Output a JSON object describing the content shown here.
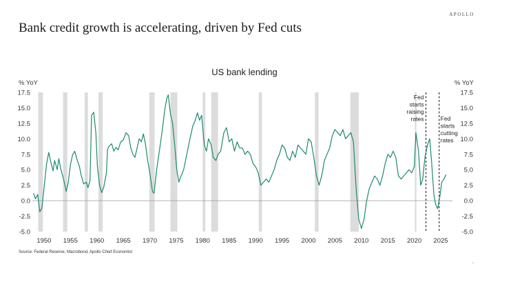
{
  "header": {
    "brand": "APOLLO",
    "headline": "Bank credit growth is accelerating, driven by Fed cuts"
  },
  "footer": {
    "source": "Source: Federal Reserve, Macrobond, Apollo Chief Economist",
    "corner_mark": "•"
  },
  "colors": {
    "line": "#1a8a6c",
    "recession": "#dcdcdc",
    "zero_line": "#999999",
    "event_line": "#333333"
  },
  "chart_data": {
    "type": "line",
    "title": "US bank lending",
    "ylabel_left": "% YoY",
    "ylabel_right": "% YoY",
    "xlim": [
      1947.8,
      2027.2
    ],
    "ylim": [
      -5.0,
      17.5
    ],
    "xticks": [
      1950,
      1955,
      1960,
      1965,
      1970,
      1975,
      1980,
      1985,
      1990,
      1995,
      2000,
      2005,
      2010,
      2015,
      2020,
      2025
    ],
    "yticks": [
      "17.5",
      "15.0",
      "12.5",
      "10.0",
      "7.5",
      "5.0",
      "2.5",
      "0.0",
      "-2.5",
      "-5.0"
    ],
    "recessions": [
      [
        1948.9,
        1949.8
      ],
      [
        1953.6,
        1954.4
      ],
      [
        1957.7,
        1958.3
      ],
      [
        1960.3,
        1961.1
      ],
      [
        1969.9,
        1970.9
      ],
      [
        1973.9,
        1975.2
      ],
      [
        1980.0,
        1980.5
      ],
      [
        1981.6,
        1982.9
      ],
      [
        1990.6,
        1991.2
      ],
      [
        2001.2,
        2001.9
      ],
      [
        2007.9,
        2009.5
      ],
      [
        2020.1,
        2020.4
      ]
    ],
    "events": [
      {
        "x": 2022.2,
        "label": [
          "Fed",
          "starts",
          "raising",
          "rates"
        ]
      },
      {
        "x": 2024.7,
        "label": [
          "Fed",
          "starts",
          "cutting",
          "rates"
        ]
      }
    ],
    "series": [
      {
        "values": [
          [
            1948.0,
            1.2
          ],
          [
            1948.4,
            0.3
          ],
          [
            1948.8,
            1.0
          ],
          [
            1949.2,
            -1.8
          ],
          [
            1949.6,
            -1.2
          ],
          [
            1950.0,
            2.0
          ],
          [
            1950.5,
            6.0
          ],
          [
            1950.9,
            7.8
          ],
          [
            1951.3,
            6.2
          ],
          [
            1951.7,
            4.8
          ],
          [
            1952.0,
            6.5
          ],
          [
            1952.5,
            5.0
          ],
          [
            1952.8,
            6.8
          ],
          [
            1953.2,
            5.0
          ],
          [
            1953.7,
            3.5
          ],
          [
            1954.2,
            1.5
          ],
          [
            1954.6,
            3.0
          ],
          [
            1955.0,
            5.8
          ],
          [
            1955.4,
            7.4
          ],
          [
            1955.8,
            8.0
          ],
          [
            1956.3,
            6.5
          ],
          [
            1956.7,
            5.5
          ],
          [
            1957.0,
            4.2
          ],
          [
            1957.5,
            2.7
          ],
          [
            1958.0,
            3.0
          ],
          [
            1958.3,
            2.1
          ],
          [
            1958.7,
            3.2
          ],
          [
            1959.0,
            13.8
          ],
          [
            1959.4,
            14.3
          ],
          [
            1959.8,
            11.0
          ],
          [
            1960.1,
            5.5
          ],
          [
            1960.5,
            2.5
          ],
          [
            1960.9,
            1.3
          ],
          [
            1961.3,
            2.2
          ],
          [
            1961.8,
            4.5
          ],
          [
            1962.0,
            8.3
          ],
          [
            1962.3,
            8.8
          ],
          [
            1962.8,
            9.2
          ],
          [
            1963.2,
            8.0
          ],
          [
            1963.6,
            8.6
          ],
          [
            1964.0,
            8.2
          ],
          [
            1964.5,
            9.5
          ],
          [
            1965.0,
            9.8
          ],
          [
            1965.5,
            11.0
          ],
          [
            1966.0,
            10.5
          ],
          [
            1966.4,
            8.5
          ],
          [
            1966.8,
            7.5
          ],
          [
            1967.2,
            7.0
          ],
          [
            1967.6,
            8.5
          ],
          [
            1968.0,
            10.0
          ],
          [
            1968.4,
            9.5
          ],
          [
            1968.8,
            10.8
          ],
          [
            1969.2,
            9.0
          ],
          [
            1969.6,
            6.5
          ],
          [
            1970.0,
            4.5
          ],
          [
            1970.5,
            1.5
          ],
          [
            1970.8,
            1.2
          ],
          [
            1971.3,
            5.0
          ],
          [
            1971.8,
            8.0
          ],
          [
            1972.3,
            11.0
          ],
          [
            1972.8,
            14.5
          ],
          [
            1973.2,
            16.5
          ],
          [
            1973.5,
            17.1
          ],
          [
            1973.9,
            14.0
          ],
          [
            1974.3,
            12.5
          ],
          [
            1974.7,
            9.0
          ],
          [
            1975.1,
            5.0
          ],
          [
            1975.5,
            3.0
          ],
          [
            1975.9,
            4.0
          ],
          [
            1976.4,
            5.0
          ],
          [
            1977.0,
            7.5
          ],
          [
            1977.6,
            10.0
          ],
          [
            1978.1,
            12.0
          ],
          [
            1978.6,
            13.0
          ],
          [
            1979.0,
            14.2
          ],
          [
            1979.4,
            13.0
          ],
          [
            1979.8,
            13.8
          ],
          [
            1980.3,
            9.0
          ],
          [
            1980.7,
            8.0
          ],
          [
            1981.1,
            10.0
          ],
          [
            1981.6,
            9.0
          ],
          [
            1982.0,
            7.0
          ],
          [
            1982.5,
            6.5
          ],
          [
            1982.9,
            7.5
          ],
          [
            1983.4,
            8.0
          ],
          [
            1984.0,
            11.0
          ],
          [
            1984.5,
            11.8
          ],
          [
            1985.0,
            9.5
          ],
          [
            1985.5,
            10.0
          ],
          [
            1986.0,
            8.0
          ],
          [
            1986.5,
            9.5
          ],
          [
            1987.0,
            8.5
          ],
          [
            1987.5,
            8.5
          ],
          [
            1988.0,
            7.5
          ],
          [
            1988.5,
            8.0
          ],
          [
            1989.0,
            7.5
          ],
          [
            1989.5,
            6.0
          ],
          [
            1990.0,
            5.5
          ],
          [
            1990.5,
            4.5
          ],
          [
            1991.0,
            2.5
          ],
          [
            1991.5,
            3.0
          ],
          [
            1992.0,
            3.5
          ],
          [
            1992.5,
            3.0
          ],
          [
            1993.0,
            4.0
          ],
          [
            1993.5,
            5.0
          ],
          [
            1994.0,
            6.5
          ],
          [
            1994.5,
            7.5
          ],
          [
            1995.0,
            9.0
          ],
          [
            1995.5,
            8.5
          ],
          [
            1996.0,
            7.0
          ],
          [
            1996.5,
            6.5
          ],
          [
            1997.0,
            8.0
          ],
          [
            1997.5,
            7.0
          ],
          [
            1998.0,
            9.0
          ],
          [
            1998.5,
            8.5
          ],
          [
            1999.0,
            8.0
          ],
          [
            1999.5,
            7.5
          ],
          [
            2000.0,
            10.0
          ],
          [
            2000.5,
            9.5
          ],
          [
            2001.0,
            7.0
          ],
          [
            2001.5,
            4.0
          ],
          [
            2002.0,
            2.5
          ],
          [
            2002.5,
            4.0
          ],
          [
            2003.0,
            6.5
          ],
          [
            2003.5,
            7.5
          ],
          [
            2004.0,
            8.5
          ],
          [
            2004.5,
            10.5
          ],
          [
            2005.0,
            11.5
          ],
          [
            2005.5,
            11.0
          ],
          [
            2006.0,
            10.5
          ],
          [
            2006.5,
            11.5
          ],
          [
            2007.0,
            10.0
          ],
          [
            2007.5,
            10.5
          ],
          [
            2008.0,
            11.0
          ],
          [
            2008.5,
            9.5
          ],
          [
            2009.0,
            2.0
          ],
          [
            2009.5,
            -3.0
          ],
          [
            2010.0,
            -4.5
          ],
          [
            2010.5,
            -3.0
          ],
          [
            2011.0,
            0.0
          ],
          [
            2011.5,
            2.0
          ],
          [
            2012.0,
            3.0
          ],
          [
            2012.5,
            4.0
          ],
          [
            2013.0,
            3.5
          ],
          [
            2013.5,
            2.5
          ],
          [
            2014.0,
            4.0
          ],
          [
            2014.5,
            6.0
          ],
          [
            2015.0,
            7.5
          ],
          [
            2015.5,
            7.0
          ],
          [
            2016.0,
            8.0
          ],
          [
            2016.5,
            7.0
          ],
          [
            2017.0,
            4.0
          ],
          [
            2017.5,
            3.5
          ],
          [
            2018.0,
            4.0
          ],
          [
            2018.5,
            4.5
          ],
          [
            2019.0,
            5.0
          ],
          [
            2019.5,
            4.5
          ],
          [
            2020.0,
            5.5
          ],
          [
            2020.3,
            11.0
          ],
          [
            2020.8,
            8.0
          ],
          [
            2021.2,
            2.5
          ],
          [
            2021.6,
            3.5
          ],
          [
            2022.0,
            7.0
          ],
          [
            2022.5,
            9.0
          ],
          [
            2022.9,
            10.0
          ],
          [
            2023.3,
            6.0
          ],
          [
            2023.7,
            1.0
          ],
          [
            2024.0,
            -0.5
          ],
          [
            2024.4,
            -1.3
          ],
          [
            2024.8,
            0.5
          ],
          [
            2025.2,
            3.0
          ],
          [
            2025.6,
            3.5
          ],
          [
            2026.0,
            4.2
          ]
        ]
      }
    ]
  }
}
